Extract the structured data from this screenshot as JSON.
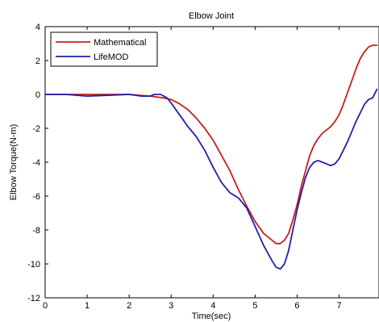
{
  "chart_data": {
    "type": "line",
    "title": "Elbow Joint",
    "xlabel": "Time(sec)",
    "ylabel": "Elbow Torque(N-m)",
    "xlim": [
      0,
      7.95
    ],
    "ylim": [
      -12,
      4
    ],
    "xticks": [
      "0",
      "1",
      "2",
      "3",
      "4",
      "5",
      "6",
      "7"
    ],
    "yticks": [
      "4",
      "2",
      "0",
      "-2",
      "-4",
      "-6",
      "-8",
      "-10",
      "-12"
    ],
    "legend_position": "top-left",
    "series": [
      {
        "name": "Mathematical",
        "color": "#c81e1e",
        "points": [
          [
            0,
            0.0
          ],
          [
            0.5,
            0.0
          ],
          [
            1.0,
            0.0
          ],
          [
            1.5,
            0.0
          ],
          [
            2.0,
            0.0
          ],
          [
            2.5,
            -0.1
          ],
          [
            2.8,
            -0.2
          ],
          [
            3.0,
            -0.3
          ],
          [
            3.2,
            -0.55
          ],
          [
            3.4,
            -0.9
          ],
          [
            3.6,
            -1.4
          ],
          [
            3.8,
            -2.0
          ],
          [
            4.0,
            -2.7
          ],
          [
            4.2,
            -3.6
          ],
          [
            4.4,
            -4.5
          ],
          [
            4.6,
            -5.6
          ],
          [
            4.8,
            -6.6
          ],
          [
            5.0,
            -7.5
          ],
          [
            5.2,
            -8.2
          ],
          [
            5.4,
            -8.6
          ],
          [
            5.5,
            -8.8
          ],
          [
            5.6,
            -8.8
          ],
          [
            5.7,
            -8.6
          ],
          [
            5.8,
            -8.2
          ],
          [
            5.9,
            -7.4
          ],
          [
            6.0,
            -6.5
          ],
          [
            6.1,
            -5.4
          ],
          [
            6.2,
            -4.5
          ],
          [
            6.3,
            -3.6
          ],
          [
            6.4,
            -3.0
          ],
          [
            6.5,
            -2.6
          ],
          [
            6.6,
            -2.3
          ],
          [
            6.7,
            -2.1
          ],
          [
            6.8,
            -1.9
          ],
          [
            6.9,
            -1.6
          ],
          [
            7.0,
            -1.2
          ],
          [
            7.1,
            -0.6
          ],
          [
            7.2,
            0.1
          ],
          [
            7.3,
            0.8
          ],
          [
            7.4,
            1.5
          ],
          [
            7.5,
            2.1
          ],
          [
            7.6,
            2.5
          ],
          [
            7.7,
            2.8
          ],
          [
            7.8,
            2.9
          ],
          [
            7.9,
            2.9
          ]
        ]
      },
      {
        "name": "LifeMOD",
        "color": "#1e22aa",
        "points": [
          [
            0,
            0.0
          ],
          [
            0.5,
            0.0
          ],
          [
            1.0,
            -0.1
          ],
          [
            1.5,
            -0.05
          ],
          [
            2.0,
            0.0
          ],
          [
            2.3,
            -0.1
          ],
          [
            2.5,
            -0.1
          ],
          [
            2.6,
            0.0
          ],
          [
            2.75,
            0.0
          ],
          [
            2.9,
            -0.2
          ],
          [
            3.0,
            -0.5
          ],
          [
            3.2,
            -1.2
          ],
          [
            3.4,
            -1.9
          ],
          [
            3.6,
            -2.5
          ],
          [
            3.8,
            -3.3
          ],
          [
            4.0,
            -4.3
          ],
          [
            4.2,
            -5.2
          ],
          [
            4.4,
            -5.8
          ],
          [
            4.6,
            -6.1
          ],
          [
            4.8,
            -6.7
          ],
          [
            5.0,
            -7.8
          ],
          [
            5.2,
            -8.9
          ],
          [
            5.4,
            -9.8
          ],
          [
            5.5,
            -10.2
          ],
          [
            5.6,
            -10.3
          ],
          [
            5.7,
            -10.0
          ],
          [
            5.8,
            -9.2
          ],
          [
            5.9,
            -8.0
          ],
          [
            6.0,
            -6.8
          ],
          [
            6.1,
            -5.8
          ],
          [
            6.2,
            -4.9
          ],
          [
            6.3,
            -4.3
          ],
          [
            6.4,
            -4.0
          ],
          [
            6.5,
            -3.9
          ],
          [
            6.6,
            -4.0
          ],
          [
            6.7,
            -4.1
          ],
          [
            6.8,
            -4.2
          ],
          [
            6.9,
            -4.1
          ],
          [
            7.0,
            -3.8
          ],
          [
            7.1,
            -3.3
          ],
          [
            7.2,
            -2.8
          ],
          [
            7.3,
            -2.2
          ],
          [
            7.4,
            -1.6
          ],
          [
            7.5,
            -1.1
          ],
          [
            7.6,
            -0.6
          ],
          [
            7.7,
            -0.3
          ],
          [
            7.8,
            -0.2
          ],
          [
            7.9,
            0.3
          ]
        ]
      }
    ]
  }
}
